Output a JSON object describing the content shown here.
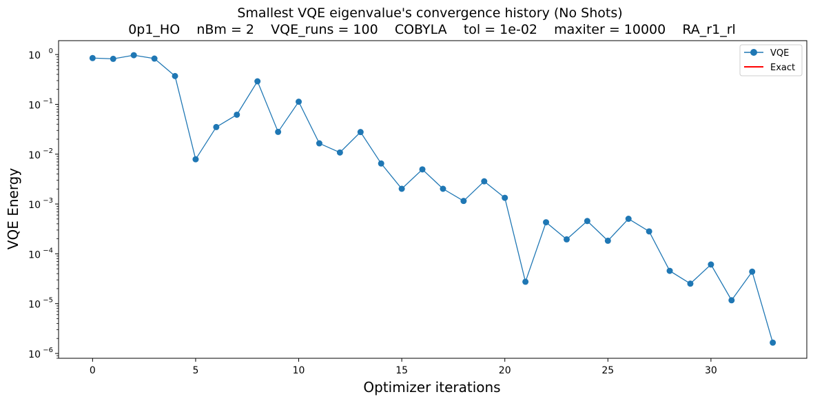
{
  "chart_data": {
    "type": "line",
    "title": "Smallest VQE eigenvalue's convergence history (No Shots)",
    "subtitle": "0p1_HO    nBm = 2    VQE_runs = 100    COBYLA    tol = 1e-02    maxiter = 10000    RA_r1_rl",
    "xlabel": "Optimizer iterations",
    "ylabel": "VQE Energy",
    "yscale": "log",
    "xlim": [
      -1.65,
      34.65
    ],
    "ylim": [
      8e-07,
      1.9
    ],
    "xticks": [
      0,
      5,
      10,
      15,
      20,
      25,
      30
    ],
    "xtick_labels": [
      "0",
      "5",
      "10",
      "15",
      "20",
      "25",
      "30"
    ],
    "yticks": [
      1,
      0.1,
      0.01,
      0.001,
      0.0001,
      1e-05,
      1e-06
    ],
    "ytick_labels": [
      {
        "base": "10",
        "exp": "0"
      },
      {
        "base": "10",
        "exp": "−1"
      },
      {
        "base": "10",
        "exp": "−2"
      },
      {
        "base": "10",
        "exp": "−3"
      },
      {
        "base": "10",
        "exp": "−4"
      },
      {
        "base": "10",
        "exp": "−5"
      },
      {
        "base": "10",
        "exp": "−6"
      }
    ],
    "grid": false,
    "legend_position": "top-right",
    "series": [
      {
        "name": "VQE",
        "color": "#1f77b4",
        "marker": "circle",
        "x": [
          0,
          1,
          2,
          3,
          4,
          5,
          6,
          7,
          8,
          9,
          10,
          11,
          12,
          13,
          14,
          15,
          16,
          17,
          18,
          19,
          20,
          21,
          22,
          23,
          24,
          25,
          26,
          27,
          28,
          29,
          30,
          31,
          32,
          33
        ],
        "y": [
          0.85,
          0.82,
          0.97,
          0.83,
          0.37,
          0.0079,
          0.035,
          0.062,
          0.29,
          0.028,
          0.113,
          0.0165,
          0.0108,
          0.0278,
          0.0065,
          0.00202,
          0.00495,
          0.00202,
          0.00115,
          0.00285,
          0.00133,
          2.75e-05,
          0.00043,
          0.000195,
          0.000455,
          0.000183,
          0.000505,
          0.000282,
          4.55e-05,
          2.52e-05,
          6.1e-05,
          1.17e-05,
          4.38e-05,
          1.65e-06
        ]
      },
      {
        "name": "Exact",
        "color": "#ff0000",
        "x": [],
        "y": []
      }
    ]
  }
}
